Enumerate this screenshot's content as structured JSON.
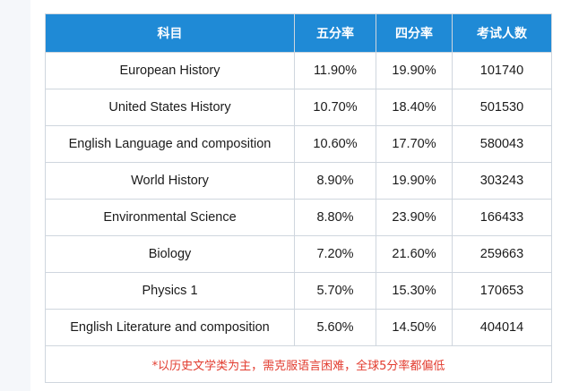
{
  "table": {
    "headers": [
      "科目",
      "五分率",
      "四分率",
      "考试人数"
    ],
    "rows": [
      {
        "subject": "European History",
        "five_rate": "11.90%",
        "four_rate": "19.90%",
        "examinees": "101740"
      },
      {
        "subject": "United States History",
        "five_rate": "10.70%",
        "four_rate": "18.40%",
        "examinees": "501530"
      },
      {
        "subject": "English Language and composition",
        "five_rate": "10.60%",
        "four_rate": "17.70%",
        "examinees": "580043"
      },
      {
        "subject": "World History",
        "five_rate": "8.90%",
        "four_rate": "19.90%",
        "examinees": "303243"
      },
      {
        "subject": "Environmental Science",
        "five_rate": "8.80%",
        "four_rate": "23.90%",
        "examinees": "166433"
      },
      {
        "subject": "Biology",
        "five_rate": "7.20%",
        "four_rate": "21.60%",
        "examinees": "259663"
      },
      {
        "subject": "Physics 1",
        "five_rate": "5.70%",
        "four_rate": "15.30%",
        "examinees": "170653"
      },
      {
        "subject": "English Literature and composition",
        "five_rate": "5.60%",
        "four_rate": "14.50%",
        "examinees": "404014"
      }
    ],
    "footnote": "*以历史文学类为主，需克服语言困难，全球5分率都偏低"
  },
  "colors": {
    "header_bg": "#1f8ad6",
    "header_text": "#ffffff",
    "footnote_text": "#e23b2e",
    "border": "#cfd6de"
  }
}
